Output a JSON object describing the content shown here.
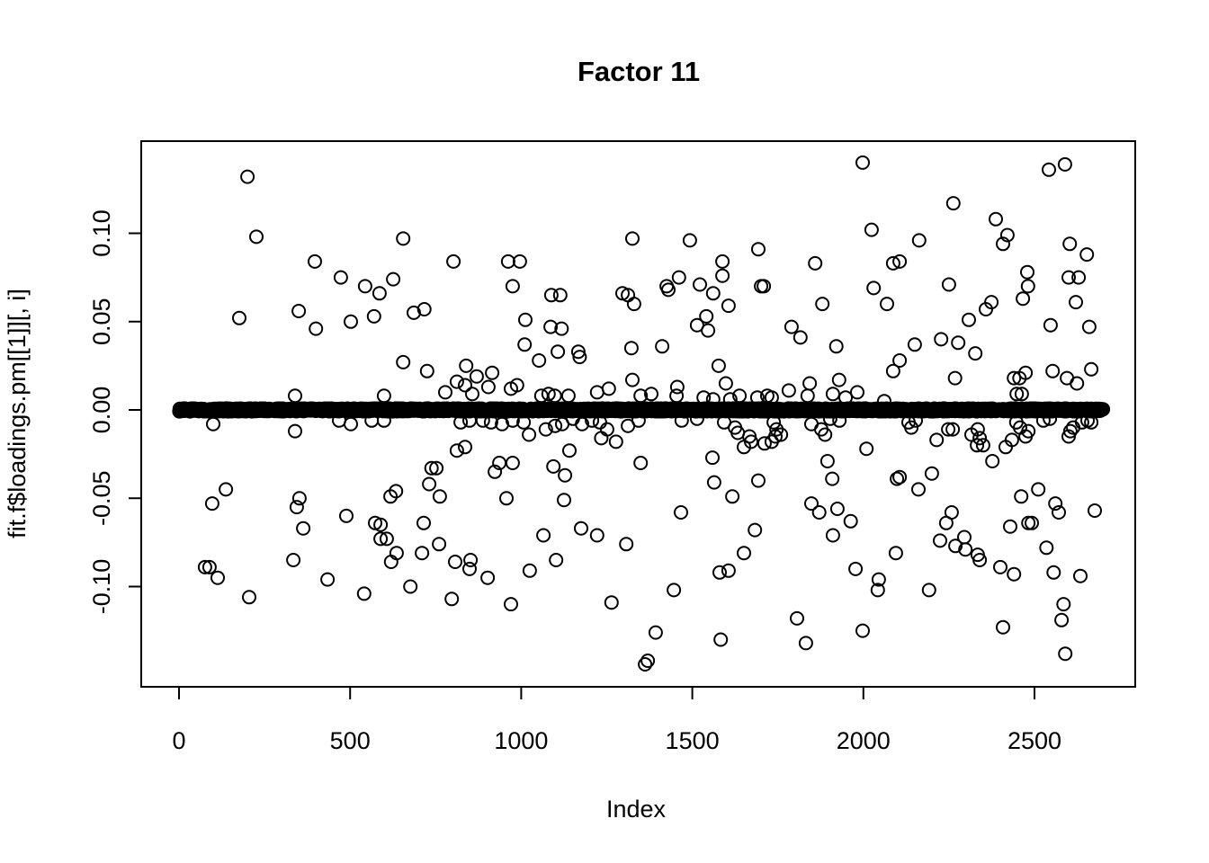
{
  "colors": {
    "foreground": "#000000",
    "background": "#ffffff"
  },
  "chart_data": {
    "type": "scatter",
    "title": "Factor 11",
    "xlabel": "Index",
    "ylabel": "fit.f$loadings.pm[[1]][, i]",
    "x_ticks": [
      0,
      500,
      1000,
      1500,
      2000,
      2500
    ],
    "x_tick_labels": [
      "0",
      "500",
      "1000",
      "1500",
      "2000",
      "2500"
    ],
    "y_ticks": [
      0.1,
      0.05,
      0.0,
      -0.05,
      -0.1
    ],
    "y_tick_labels": [
      "0.10",
      "0.05",
      "0.00",
      "-0.05",
      "-0.10"
    ],
    "xlim": [
      -110,
      2795
    ],
    "ylim": [
      -0.157,
      0.153
    ],
    "grid": false,
    "legend": null,
    "marker": {
      "shape": "open-circle",
      "radius_px": 7,
      "stroke_px": 2,
      "color": "#000000",
      "fill": "none"
    },
    "baseline_band": {
      "description": "Dense run of ~2300 loadings essentially equal to 0 across the full index range, drawn as heavily overlapping open circles forming a solid black horizontal bar",
      "y": 0,
      "x_start": 1,
      "x_end": 2700,
      "n_points": 2350,
      "jitter": 0.0008
    },
    "points": [
      [
        200,
        0.132
      ],
      [
        226,
        0.098
      ],
      [
        397,
        0.084
      ],
      [
        473,
        0.075
      ],
      [
        544,
        0.07
      ],
      [
        586,
        0.066
      ],
      [
        626,
        0.074
      ],
      [
        176,
        0.052
      ],
      [
        350,
        0.056
      ],
      [
        400,
        0.046
      ],
      [
        502,
        0.05
      ],
      [
        570,
        0.053
      ],
      [
        339,
        0.008
      ],
      [
        599,
        0.008
      ],
      [
        655,
        0.097
      ],
      [
        1325,
        0.097
      ],
      [
        802,
        0.084
      ],
      [
        962,
        0.084
      ],
      [
        996,
        0.084
      ],
      [
        975,
        0.07
      ],
      [
        1296,
        0.066
      ],
      [
        1312,
        0.065
      ],
      [
        1330,
        0.06
      ],
      [
        686,
        0.055
      ],
      [
        717,
        0.057
      ],
      [
        1012,
        0.051
      ],
      [
        1088,
        0.065
      ],
      [
        1114,
        0.065
      ],
      [
        1086,
        0.047
      ],
      [
        1118,
        0.046
      ],
      [
        1010,
        0.037
      ],
      [
        1322,
        0.035
      ],
      [
        655,
        0.027
      ],
      [
        725,
        0.022
      ],
      [
        839,
        0.025
      ],
      [
        812,
        0.016
      ],
      [
        836,
        0.014
      ],
      [
        870,
        0.019
      ],
      [
        915,
        0.021
      ],
      [
        904,
        0.013
      ],
      [
        778,
        0.01
      ],
      [
        857,
        0.009
      ],
      [
        970,
        0.012
      ],
      [
        988,
        0.014
      ],
      [
        1052,
        0.028
      ],
      [
        1107,
        0.033
      ],
      [
        1167,
        0.033
      ],
      [
        1171,
        0.03
      ],
      [
        1059,
        0.008
      ],
      [
        1080,
        0.009
      ],
      [
        1098,
        0.008
      ],
      [
        1138,
        0.008
      ],
      [
        1222,
        0.01
      ],
      [
        1256,
        0.012
      ],
      [
        1325,
        0.017
      ],
      [
        1349,
        0.008
      ],
      [
        1998,
        0.14
      ],
      [
        1493,
        0.096
      ],
      [
        2024,
        0.102
      ],
      [
        1693,
        0.091
      ],
      [
        1588,
        0.084
      ],
      [
        1859,
        0.083
      ],
      [
        2087,
        0.083
      ],
      [
        1588,
        0.076
      ],
      [
        1461,
        0.075
      ],
      [
        1425,
        0.07
      ],
      [
        1430,
        0.068
      ],
      [
        1522,
        0.071
      ],
      [
        1561,
        0.066
      ],
      [
        1701,
        0.07
      ],
      [
        1709,
        0.07
      ],
      [
        2030,
        0.069
      ],
      [
        2069,
        0.06
      ],
      [
        1606,
        0.059
      ],
      [
        1880,
        0.06
      ],
      [
        1541,
        0.053
      ],
      [
        1514,
        0.048
      ],
      [
        1546,
        0.045
      ],
      [
        1790,
        0.047
      ],
      [
        1816,
        0.041
      ],
      [
        1412,
        0.036
      ],
      [
        1921,
        0.036
      ],
      [
        1577,
        0.025
      ],
      [
        1456,
        0.013
      ],
      [
        1598,
        0.015
      ],
      [
        1843,
        0.015
      ],
      [
        1929,
        0.017
      ],
      [
        1380,
        0.009
      ],
      [
        1454,
        0.008
      ],
      [
        1533,
        0.007
      ],
      [
        1561,
        0.006
      ],
      [
        1611,
        0.006
      ],
      [
        1638,
        0.008
      ],
      [
        1690,
        0.007
      ],
      [
        1719,
        0.008
      ],
      [
        1732,
        0.007
      ],
      [
        1782,
        0.011
      ],
      [
        1837,
        0.008
      ],
      [
        1911,
        0.009
      ],
      [
        1948,
        0.007
      ],
      [
        1982,
        0.01
      ],
      [
        2061,
        0.005
      ],
      [
        2087,
        0.022
      ],
      [
        2542,
        0.136
      ],
      [
        2589,
        0.139
      ],
      [
        2263,
        0.117
      ],
      [
        2387,
        0.108
      ],
      [
        2421,
        0.099
      ],
      [
        2408,
        0.094
      ],
      [
        2163,
        0.096
      ],
      [
        2106,
        0.084
      ],
      [
        2603,
        0.094
      ],
      [
        2653,
        0.088
      ],
      [
        2479,
        0.078
      ],
      [
        2481,
        0.07
      ],
      [
        2600,
        0.075
      ],
      [
        2629,
        0.075
      ],
      [
        2466,
        0.063
      ],
      [
        2250,
        0.071
      ],
      [
        2374,
        0.061
      ],
      [
        2358,
        0.057
      ],
      [
        2308,
        0.051
      ],
      [
        2621,
        0.061
      ],
      [
        2547,
        0.048
      ],
      [
        2660,
        0.047
      ],
      [
        2150,
        0.037
      ],
      [
        2227,
        0.04
      ],
      [
        2277,
        0.038
      ],
      [
        2327,
        0.032
      ],
      [
        2106,
        0.028
      ],
      [
        2268,
        0.018
      ],
      [
        2440,
        0.018
      ],
      [
        2456,
        0.018
      ],
      [
        2474,
        0.021
      ],
      [
        2448,
        0.009
      ],
      [
        2463,
        0.009
      ],
      [
        2553,
        0.022
      ],
      [
        2595,
        0.018
      ],
      [
        2624,
        0.015
      ],
      [
        2666,
        0.023
      ],
      [
        100,
        -0.008
      ],
      [
        339,
        -0.012
      ],
      [
        468,
        -0.006
      ],
      [
        502,
        -0.008
      ],
      [
        563,
        -0.006
      ],
      [
        599,
        -0.006
      ],
      [
        137,
        -0.045
      ],
      [
        97,
        -0.053
      ],
      [
        352,
        -0.05
      ],
      [
        344,
        -0.055
      ],
      [
        363,
        -0.067
      ],
      [
        489,
        -0.06
      ],
      [
        573,
        -0.064
      ],
      [
        589,
        -0.065
      ],
      [
        589,
        -0.073
      ],
      [
        607,
        -0.073
      ],
      [
        618,
        -0.049
      ],
      [
        620,
        -0.086
      ],
      [
        334,
        -0.085
      ],
      [
        76,
        -0.089
      ],
      [
        89,
        -0.089
      ],
      [
        113,
        -0.095
      ],
      [
        205,
        -0.106
      ],
      [
        434,
        -0.096
      ],
      [
        541,
        -0.104
      ],
      [
        823,
        -0.007
      ],
      [
        849,
        -0.006
      ],
      [
        888,
        -0.006
      ],
      [
        912,
        -0.007
      ],
      [
        944,
        -0.008
      ],
      [
        975,
        -0.006
      ],
      [
        1007,
        -0.007
      ],
      [
        1023,
        -0.014
      ],
      [
        1072,
        -0.011
      ],
      [
        1099,
        -0.009
      ],
      [
        1120,
        -0.008
      ],
      [
        1151,
        -0.005
      ],
      [
        1178,
        -0.008
      ],
      [
        1207,
        -0.006
      ],
      [
        1230,
        -0.007
      ],
      [
        1251,
        -0.011
      ],
      [
        1277,
        -0.018
      ],
      [
        1234,
        -0.016
      ],
      [
        1312,
        -0.009
      ],
      [
        1343,
        -0.006
      ],
      [
        812,
        -0.023
      ],
      [
        836,
        -0.021
      ],
      [
        1141,
        -0.023
      ],
      [
        1349,
        -0.03
      ],
      [
        738,
        -0.033
      ],
      [
        752,
        -0.033
      ],
      [
        936,
        -0.03
      ],
      [
        975,
        -0.03
      ],
      [
        923,
        -0.035
      ],
      [
        1094,
        -0.032
      ],
      [
        1128,
        -0.037
      ],
      [
        731,
        -0.042
      ],
      [
        634,
        -0.046
      ],
      [
        762,
        -0.049
      ],
      [
        957,
        -0.05
      ],
      [
        1125,
        -0.051
      ],
      [
        715,
        -0.064
      ],
      [
        760,
        -0.076
      ],
      [
        710,
        -0.081
      ],
      [
        636,
        -0.081
      ],
      [
        807,
        -0.086
      ],
      [
        852,
        -0.085
      ],
      [
        849,
        -0.09
      ],
      [
        902,
        -0.095
      ],
      [
        1025,
        -0.091
      ],
      [
        1065,
        -0.071
      ],
      [
        1102,
        -0.085
      ],
      [
        1175,
        -0.067
      ],
      [
        1222,
        -0.071
      ],
      [
        1307,
        -0.076
      ],
      [
        676,
        -0.1
      ],
      [
        797,
        -0.107
      ],
      [
        970,
        -0.11
      ],
      [
        1264,
        -0.109
      ],
      [
        1362,
        -0.144
      ],
      [
        1469,
        -0.006
      ],
      [
        1514,
        -0.005
      ],
      [
        1593,
        -0.007
      ],
      [
        1625,
        -0.01
      ],
      [
        1633,
        -0.013
      ],
      [
        1667,
        -0.015
      ],
      [
        1672,
        -0.018
      ],
      [
        1651,
        -0.021
      ],
      [
        1738,
        -0.007
      ],
      [
        1746,
        -0.011
      ],
      [
        1743,
        -0.015
      ],
      [
        1759,
        -0.014
      ],
      [
        1711,
        -0.019
      ],
      [
        1732,
        -0.018
      ],
      [
        1848,
        -0.008
      ],
      [
        1877,
        -0.011
      ],
      [
        1888,
        -0.014
      ],
      [
        1903,
        -0.005
      ],
      [
        1930,
        -0.006
      ],
      [
        2009,
        -0.022
      ],
      [
        1895,
        -0.029
      ],
      [
        1909,
        -0.039
      ],
      [
        1559,
        -0.027
      ],
      [
        1564,
        -0.041
      ],
      [
        1617,
        -0.049
      ],
      [
        1693,
        -0.04
      ],
      [
        1467,
        -0.058
      ],
      [
        1683,
        -0.068
      ],
      [
        1651,
        -0.081
      ],
      [
        1580,
        -0.092
      ],
      [
        1606,
        -0.091
      ],
      [
        1446,
        -0.102
      ],
      [
        1848,
        -0.053
      ],
      [
        1871,
        -0.058
      ],
      [
        1924,
        -0.056
      ],
      [
        1963,
        -0.063
      ],
      [
        1911,
        -0.071
      ],
      [
        1977,
        -0.09
      ],
      [
        2045,
        -0.096
      ],
      [
        2042,
        -0.102
      ],
      [
        2095,
        -0.081
      ],
      [
        2098,
        -0.039
      ],
      [
        1806,
        -0.118
      ],
      [
        1832,
        -0.132
      ],
      [
        1393,
        -0.126
      ],
      [
        1370,
        -0.142
      ],
      [
        1583,
        -0.13
      ],
      [
        1998,
        -0.125
      ],
      [
        2132,
        -0.007
      ],
      [
        2153,
        -0.006
      ],
      [
        2140,
        -0.01
      ],
      [
        2214,
        -0.017
      ],
      [
        2248,
        -0.011
      ],
      [
        2261,
        -0.011
      ],
      [
        2334,
        -0.011
      ],
      [
        2316,
        -0.014
      ],
      [
        2340,
        -0.016
      ],
      [
        2350,
        -0.02
      ],
      [
        2332,
        -0.02
      ],
      [
        2377,
        -0.029
      ],
      [
        2416,
        -0.021
      ],
      [
        2434,
        -0.017
      ],
      [
        2447,
        -0.007
      ],
      [
        2458,
        -0.01
      ],
      [
        2474,
        -0.015
      ],
      [
        2482,
        -0.012
      ],
      [
        2526,
        -0.006
      ],
      [
        2545,
        -0.005
      ],
      [
        2605,
        -0.012
      ],
      [
        2613,
        -0.01
      ],
      [
        2600,
        -0.015
      ],
      [
        2639,
        -0.007
      ],
      [
        2655,
        -0.006
      ],
      [
        2666,
        -0.007
      ],
      [
        2200,
        -0.036
      ],
      [
        2106,
        -0.038
      ],
      [
        2161,
        -0.045
      ],
      [
        2461,
        -0.049
      ],
      [
        2511,
        -0.045
      ],
      [
        2561,
        -0.053
      ],
      [
        2571,
        -0.058
      ],
      [
        2676,
        -0.057
      ],
      [
        2258,
        -0.058
      ],
      [
        2242,
        -0.064
      ],
      [
        2224,
        -0.074
      ],
      [
        2269,
        -0.077
      ],
      [
        2295,
        -0.072
      ],
      [
        2298,
        -0.079
      ],
      [
        2334,
        -0.082
      ],
      [
        2340,
        -0.085
      ],
      [
        2400,
        -0.089
      ],
      [
        2440,
        -0.093
      ],
      [
        2482,
        -0.064
      ],
      [
        2492,
        -0.064
      ],
      [
        2429,
        -0.066
      ],
      [
        2535,
        -0.078
      ],
      [
        2556,
        -0.092
      ],
      [
        2634,
        -0.094
      ],
      [
        2192,
        -0.102
      ],
      [
        2585,
        -0.11
      ],
      [
        2579,
        -0.119
      ],
      [
        2408,
        -0.123
      ],
      [
        2590,
        -0.138
      ]
    ]
  }
}
